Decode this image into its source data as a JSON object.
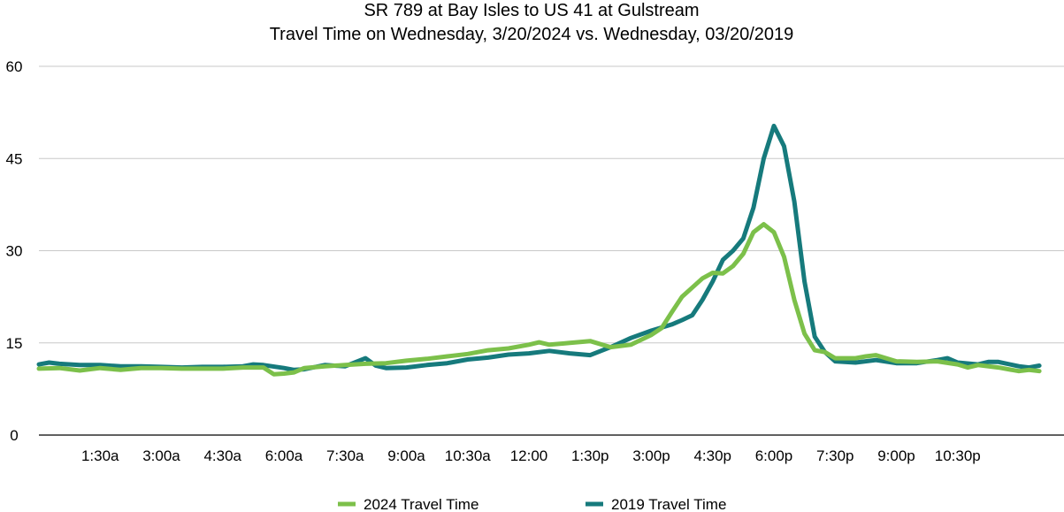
{
  "chart_data": {
    "type": "line",
    "title_lines": [
      "SR 789 at Bay Isles to US 41 at Gulstream",
      "Travel Time on Wednesday, 3/20/2024 vs. Wednesday, 03/20/2019"
    ],
    "xlabel": "",
    "ylabel": "",
    "ylim": [
      0,
      60
    ],
    "yticks": [
      "0",
      "15",
      "30",
      "45",
      "60"
    ],
    "xlim": [
      0,
      24
    ],
    "xticks": [
      {
        "x": 1.5,
        "label": "1:30a"
      },
      {
        "x": 3.0,
        "label": "3:00a"
      },
      {
        "x": 4.5,
        "label": "4:30a"
      },
      {
        "x": 6.0,
        "label": "6:00a"
      },
      {
        "x": 7.5,
        "label": "7:30a"
      },
      {
        "x": 9.0,
        "label": "9:00a"
      },
      {
        "x": 10.5,
        "label": "10:30a"
      },
      {
        "x": 12.0,
        "label": "12:00"
      },
      {
        "x": 13.5,
        "label": "1:30p"
      },
      {
        "x": 15.0,
        "label": "3:00p"
      },
      {
        "x": 16.5,
        "label": "4:30p"
      },
      {
        "x": 18.0,
        "label": "6:00p"
      },
      {
        "x": 19.5,
        "label": "7:30p"
      },
      {
        "x": 21.0,
        "label": "9:00p"
      },
      {
        "x": 22.5,
        "label": "10:30p"
      }
    ],
    "grid": true,
    "legend_position": "bottom",
    "series": [
      {
        "name": "2024 Travel Time",
        "color": "#7cc04a",
        "points": [
          [
            0.0,
            10.8
          ],
          [
            0.5,
            10.9
          ],
          [
            1.0,
            10.5
          ],
          [
            1.5,
            10.9
          ],
          [
            2.0,
            10.6
          ],
          [
            2.5,
            10.9
          ],
          [
            3.0,
            10.9
          ],
          [
            3.5,
            10.8
          ],
          [
            4.0,
            10.8
          ],
          [
            4.5,
            10.8
          ],
          [
            5.0,
            11.0
          ],
          [
            5.5,
            11.0
          ],
          [
            5.75,
            9.9
          ],
          [
            6.0,
            10.0
          ],
          [
            6.25,
            10.2
          ],
          [
            6.5,
            10.9
          ],
          [
            7.0,
            11.2
          ],
          [
            7.5,
            11.4
          ],
          [
            8.0,
            11.6
          ],
          [
            8.5,
            11.7
          ],
          [
            9.0,
            12.1
          ],
          [
            9.5,
            12.4
          ],
          [
            10.0,
            12.8
          ],
          [
            10.5,
            13.2
          ],
          [
            11.0,
            13.8
          ],
          [
            11.5,
            14.1
          ],
          [
            12.0,
            14.7
          ],
          [
            12.25,
            15.1
          ],
          [
            12.5,
            14.7
          ],
          [
            13.0,
            15.0
          ],
          [
            13.5,
            15.3
          ],
          [
            14.0,
            14.3
          ],
          [
            14.5,
            14.7
          ],
          [
            15.0,
            16.3
          ],
          [
            15.25,
            17.4
          ],
          [
            15.5,
            20.0
          ],
          [
            15.75,
            22.5
          ],
          [
            16.0,
            24.0
          ],
          [
            16.25,
            25.5
          ],
          [
            16.5,
            26.4
          ],
          [
            16.75,
            26.3
          ],
          [
            17.0,
            27.5
          ],
          [
            17.25,
            29.5
          ],
          [
            17.5,
            33.0
          ],
          [
            17.75,
            34.3
          ],
          [
            18.0,
            33.0
          ],
          [
            18.25,
            29.0
          ],
          [
            18.5,
            22.0
          ],
          [
            18.75,
            16.5
          ],
          [
            19.0,
            13.8
          ],
          [
            19.25,
            13.5
          ],
          [
            19.5,
            12.5
          ],
          [
            20.0,
            12.5
          ],
          [
            20.25,
            12.8
          ],
          [
            20.5,
            13.0
          ],
          [
            21.0,
            12.0
          ],
          [
            21.5,
            11.9
          ],
          [
            22.0,
            12.0
          ],
          [
            22.5,
            11.5
          ],
          [
            22.75,
            11.0
          ],
          [
            23.0,
            11.4
          ],
          [
            23.5,
            11.0
          ],
          [
            24.0,
            10.4
          ],
          [
            24.25,
            10.6
          ],
          [
            24.5,
            10.4
          ]
        ]
      },
      {
        "name": "2019 Travel Time",
        "color": "#167a7c",
        "points": [
          [
            0.0,
            11.5
          ],
          [
            0.25,
            11.8
          ],
          [
            0.5,
            11.6
          ],
          [
            1.0,
            11.4
          ],
          [
            1.5,
            11.4
          ],
          [
            2.0,
            11.2
          ],
          [
            2.5,
            11.2
          ],
          [
            3.0,
            11.1
          ],
          [
            3.5,
            11.0
          ],
          [
            4.0,
            11.1
          ],
          [
            4.5,
            11.1
          ],
          [
            5.0,
            11.2
          ],
          [
            5.25,
            11.5
          ],
          [
            5.5,
            11.4
          ],
          [
            6.0,
            10.9
          ],
          [
            6.25,
            10.6
          ],
          [
            6.5,
            10.7
          ],
          [
            7.0,
            11.4
          ],
          [
            7.5,
            11.2
          ],
          [
            8.0,
            12.5
          ],
          [
            8.25,
            11.3
          ],
          [
            8.5,
            10.9
          ],
          [
            9.0,
            11.0
          ],
          [
            9.5,
            11.4
          ],
          [
            10.0,
            11.7
          ],
          [
            10.5,
            12.3
          ],
          [
            11.0,
            12.6
          ],
          [
            11.5,
            13.1
          ],
          [
            12.0,
            13.3
          ],
          [
            12.5,
            13.7
          ],
          [
            13.0,
            13.3
          ],
          [
            13.5,
            13.0
          ],
          [
            14.0,
            14.3
          ],
          [
            14.5,
            15.8
          ],
          [
            15.0,
            17.0
          ],
          [
            15.5,
            18.0
          ],
          [
            15.75,
            18.7
          ],
          [
            16.0,
            19.5
          ],
          [
            16.25,
            22.0
          ],
          [
            16.5,
            25.0
          ],
          [
            16.75,
            28.5
          ],
          [
            17.0,
            30.0
          ],
          [
            17.25,
            32.0
          ],
          [
            17.5,
            37.0
          ],
          [
            17.75,
            45.0
          ],
          [
            18.0,
            50.3
          ],
          [
            18.25,
            47.0
          ],
          [
            18.5,
            38.0
          ],
          [
            18.75,
            25.0
          ],
          [
            19.0,
            16.0
          ],
          [
            19.25,
            13.5
          ],
          [
            19.5,
            12.0
          ],
          [
            20.0,
            11.8
          ],
          [
            20.5,
            12.2
          ],
          [
            21.0,
            11.7
          ],
          [
            21.5,
            11.7
          ],
          [
            22.0,
            12.2
          ],
          [
            22.25,
            12.5
          ],
          [
            22.5,
            11.8
          ],
          [
            23.0,
            11.5
          ],
          [
            23.25,
            11.9
          ],
          [
            23.5,
            11.9
          ],
          [
            24.0,
            11.2
          ],
          [
            24.25,
            11.0
          ],
          [
            24.5,
            11.3
          ]
        ]
      }
    ]
  }
}
